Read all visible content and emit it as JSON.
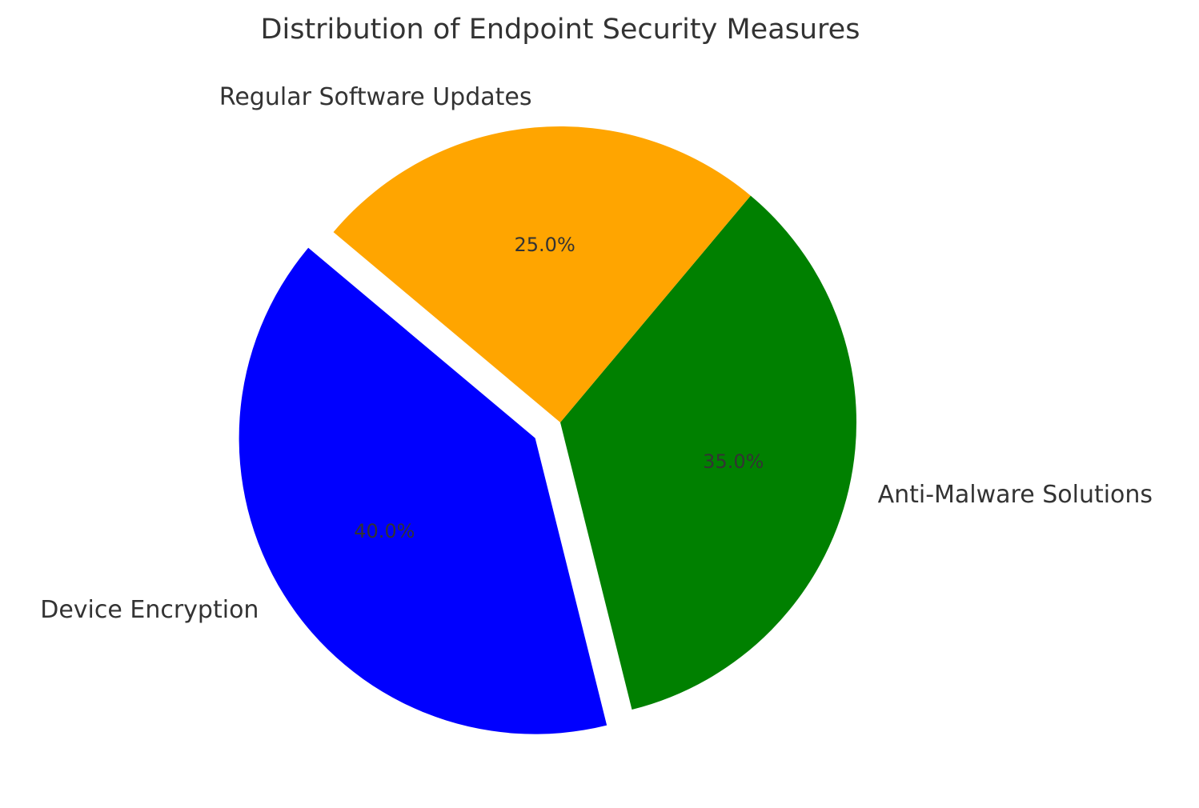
{
  "chart_data": {
    "type": "pie",
    "title": "Distribution of Endpoint Security Measures",
    "categories": [
      "Device Encryption",
      "Anti-Malware Solutions",
      "Regular Software Updates"
    ],
    "values": [
      40,
      35,
      25
    ],
    "value_labels": [
      "40.0%",
      "35.0%",
      "25.0%"
    ],
    "colors": [
      "#0000ff",
      "#008000",
      "#ffa500"
    ],
    "explode": [
      0.1,
      0,
      0
    ],
    "startangle": 140
  }
}
